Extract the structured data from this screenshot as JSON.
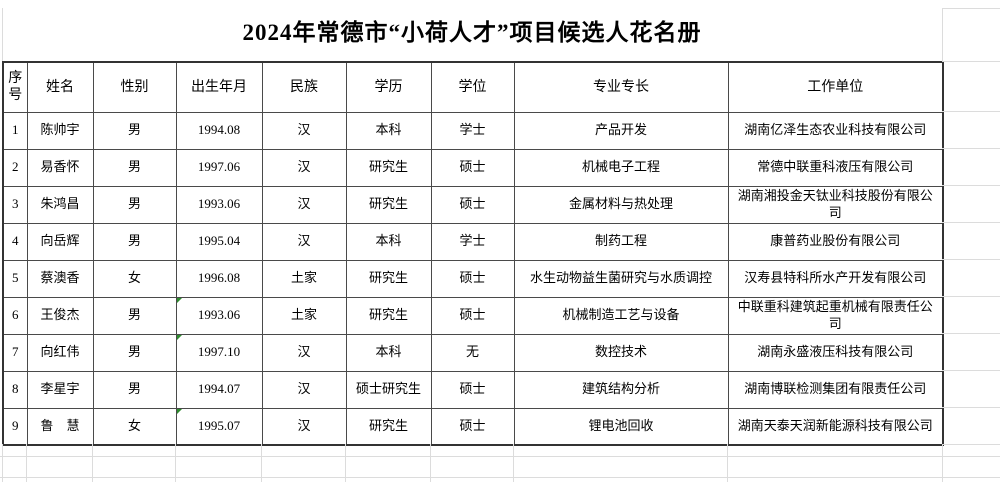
{
  "title": "2024年常德市“小荷人才”项目候选人花名册",
  "colors": {
    "background": "#ffffff",
    "text": "#000000",
    "table_border": "#4a4a4a",
    "faint_gridline": "#dcdcdc",
    "error_marker_green": "#2e8b2e"
  },
  "table": {
    "columns": [
      {
        "key": "no",
        "label": "序号"
      },
      {
        "key": "name",
        "label": "姓名"
      },
      {
        "key": "gender",
        "label": "性别"
      },
      {
        "key": "birth",
        "label": "出生年月"
      },
      {
        "key": "ethnicity",
        "label": "民族"
      },
      {
        "key": "education",
        "label": "学历"
      },
      {
        "key": "degree",
        "label": "学位"
      },
      {
        "key": "specialty",
        "label": "专业专长"
      },
      {
        "key": "employer",
        "label": "工作单位"
      }
    ],
    "rows": [
      {
        "no": "1",
        "name": "陈帅宇",
        "gender": "男",
        "birth": "1994.08",
        "ethnicity": "汉",
        "education": "本科",
        "degree": "学士",
        "specialty": "产品开发",
        "employer": "湖南亿泽生态农业科技有限公司",
        "birth_error_marker": false
      },
      {
        "no": "2",
        "name": "易香怀",
        "gender": "男",
        "birth": "1997.06",
        "ethnicity": "汉",
        "education": "研究生",
        "degree": "硕士",
        "specialty": "机械电子工程",
        "employer": "常德中联重科液压有限公司",
        "birth_error_marker": false
      },
      {
        "no": "3",
        "name": "朱鸿昌",
        "gender": "男",
        "birth": "1993.06",
        "ethnicity": "汉",
        "education": "研究生",
        "degree": "硕士",
        "specialty": "金属材料与热处理",
        "employer": "湖南湘投金天钛业科技股份有限公司",
        "birth_error_marker": false
      },
      {
        "no": "4",
        "name": "向岳辉",
        "gender": "男",
        "birth": "1995.04",
        "ethnicity": "汉",
        "education": "本科",
        "degree": "学士",
        "specialty": "制药工程",
        "employer": "康普药业股份有限公司",
        "birth_error_marker": false
      },
      {
        "no": "5",
        "name": "蔡澳香",
        "gender": "女",
        "birth": "1996.08",
        "ethnicity": "土家",
        "education": "研究生",
        "degree": "硕士",
        "specialty": "水生动物益生菌研究与水质调控",
        "employer": "汉寿县特科所水产开发有限公司",
        "birth_error_marker": false
      },
      {
        "no": "6",
        "name": "王俊杰",
        "gender": "男",
        "birth": "1993.06",
        "ethnicity": "土家",
        "education": "研究生",
        "degree": "硕士",
        "specialty": "机械制造工艺与设备",
        "employer": "中联重科建筑起重机械有限责任公司",
        "birth_error_marker": true
      },
      {
        "no": "7",
        "name": "向红伟",
        "gender": "男",
        "birth": "1997.10",
        "ethnicity": "汉",
        "education": "本科",
        "degree": "无",
        "specialty": "数控技术",
        "employer": "湖南永盛液压科技有限公司",
        "birth_error_marker": true
      },
      {
        "no": "8",
        "name": "李星宇",
        "gender": "男",
        "birth": "1994.07",
        "ethnicity": "汉",
        "education": "硕士研究生",
        "degree": "硕士",
        "specialty": "建筑结构分析",
        "employer": "湖南博联检测集团有限责任公司",
        "birth_error_marker": false
      },
      {
        "no": "9",
        "name": "鲁　慧",
        "gender": "女",
        "birth": "1995.07",
        "ethnicity": "汉",
        "education": "研究生",
        "degree": "硕士",
        "specialty": "锂电池回收",
        "employer": "湖南天泰天润新能源科技有限公司",
        "birth_error_marker": true
      }
    ]
  }
}
